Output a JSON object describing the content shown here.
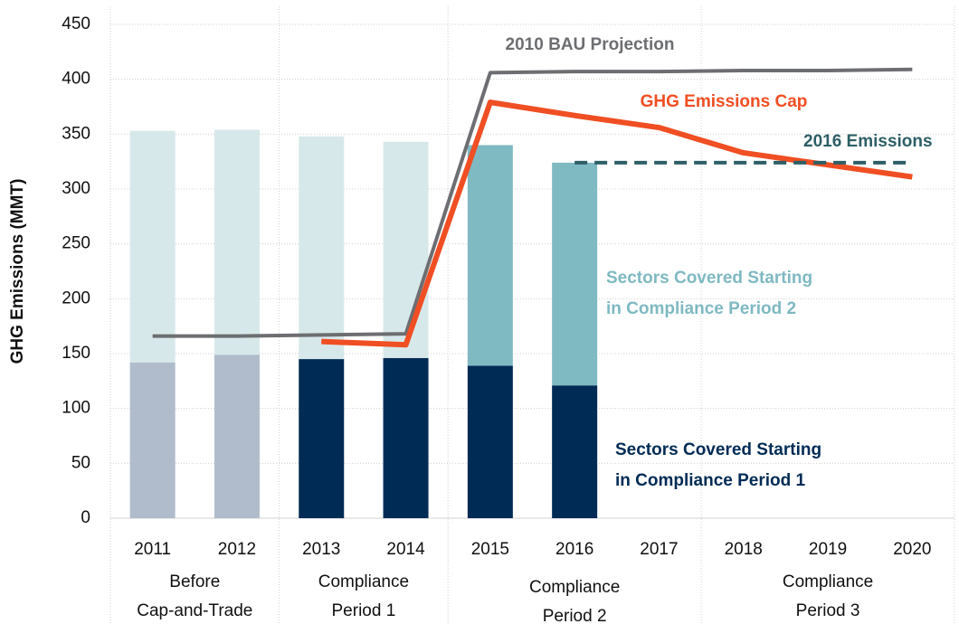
{
  "chart_data": {
    "type": "bar",
    "stacked": true,
    "ylabel": "GHG Emissions (MMT)",
    "categories": [
      "2011",
      "2012",
      "2013",
      "2014",
      "2015",
      "2016",
      "2017",
      "2018",
      "2019",
      "2020"
    ],
    "groups": [
      [
        "Before",
        "Cap-and-Trade"
      ],
      [
        "Compliance",
        "Period 1"
      ],
      [
        "Compliance",
        "Period 2"
      ],
      [
        "Compliance",
        "Period 3"
      ]
    ],
    "series": [
      {
        "name": [
          "Sectors Covered Starting",
          "in Compliance Period 1"
        ],
        "color": "#002b55",
        "colors": [
          "#b0bccb",
          "#b0bccb",
          "#002b55",
          "#002b55",
          "#002b55",
          "#002b55",
          null,
          null,
          null,
          null
        ],
        "values": [
          142,
          149,
          145,
          146,
          139,
          121,
          null,
          null,
          null,
          null
        ]
      },
      {
        "name": [
          "Sectors Covered Starting",
          "in Compliance Period 2"
        ],
        "color": "#7fb9c2",
        "colors": [
          "#d7e8ea",
          "#d7e8ea",
          "#d7e8ea",
          "#d7e8ea",
          "#7fb9c2",
          "#7fb9c2",
          null,
          null,
          null,
          null
        ],
        "values": [
          211,
          205,
          203,
          197,
          201,
          203,
          null,
          null,
          null,
          null
        ]
      }
    ],
    "lines": [
      {
        "name": "2010 BAU Projection",
        "color": "#6d6e71",
        "dashed": false,
        "values": [
          166,
          166,
          167,
          168,
          406,
          407,
          407,
          408,
          408,
          409
        ]
      },
      {
        "name": "GHG Emissions Cap",
        "color": "#f04e23",
        "dashed": false,
        "values": [
          null,
          null,
          161,
          158,
          379,
          367,
          356,
          333,
          322,
          311
        ]
      },
      {
        "name": "2016 Emissions",
        "color": "#2e5f66",
        "dashed": true,
        "values": [
          null,
          null,
          null,
          null,
          null,
          324,
          324,
          324,
          324,
          324
        ]
      }
    ],
    "ylim": [
      0,
      450
    ],
    "yticks": [
      0,
      50,
      100,
      150,
      200,
      250,
      300,
      350,
      400,
      450
    ],
    "grid": true
  }
}
